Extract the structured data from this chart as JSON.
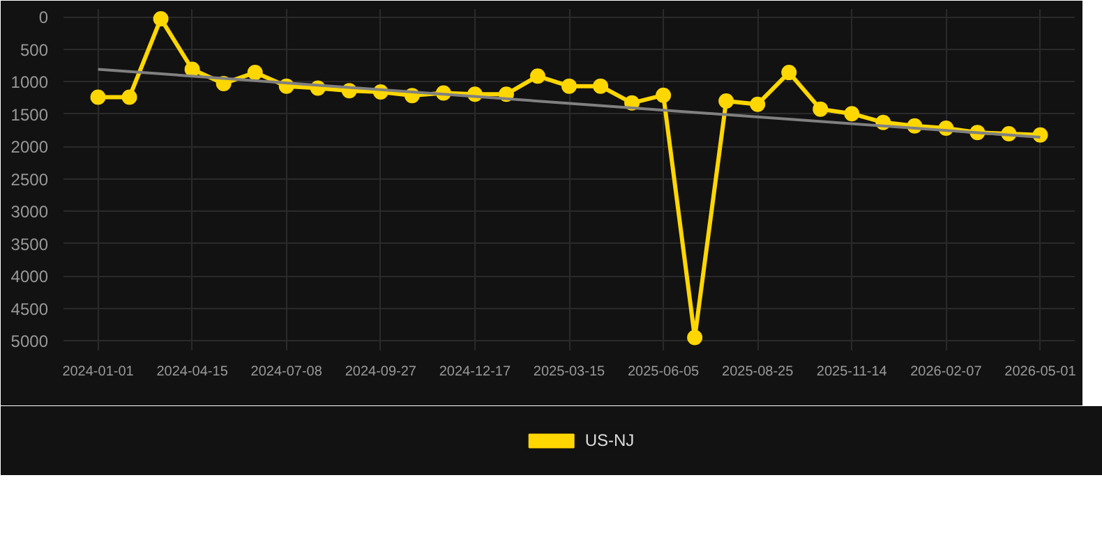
{
  "chart_data": {
    "type": "line",
    "categories": [
      "2024-01-01",
      null,
      null,
      "2024-04-15",
      null,
      null,
      "2024-07-08",
      null,
      null,
      "2024-09-27",
      null,
      null,
      "2024-12-17",
      null,
      null,
      "2025-03-15",
      null,
      null,
      "2025-06-05",
      null,
      null,
      "2025-08-25",
      null,
      null,
      "2025-11-14",
      null,
      null,
      "2026-02-07",
      null,
      null,
      "2026-05-01"
    ],
    "series": [
      {
        "name": "US-NJ",
        "color": "#ffd700",
        "values": [
          1240,
          1240,
          30,
          810,
          1030,
          860,
          1070,
          1100,
          1140,
          1160,
          1215,
          1175,
          1195,
          1195,
          915,
          1070,
          1070,
          1330,
          1210,
          4950,
          1300,
          1350,
          860,
          1425,
          1495,
          1630,
          1685,
          1720,
          1785,
          1805,
          1825
        ],
        "marker": "circle"
      },
      {
        "type": "line",
        "color": "#808080",
        "values": [
          810,
          null,
          null,
          null,
          null,
          null,
          null,
          null,
          null,
          null,
          null,
          null,
          null,
          null,
          null,
          null,
          null,
          null,
          null,
          null,
          null,
          null,
          null,
          null,
          null,
          null,
          null,
          null,
          null,
          null,
          1860
        ],
        "marker": "none"
      }
    ],
    "ylim": [
      5150,
      -120
    ],
    "yticks": [
      0,
      500,
      1000,
      1500,
      2000,
      2500,
      3000,
      3500,
      4000,
      4500,
      5000
    ],
    "grid": true,
    "legend": "bottom",
    "line_style": "solid"
  }
}
